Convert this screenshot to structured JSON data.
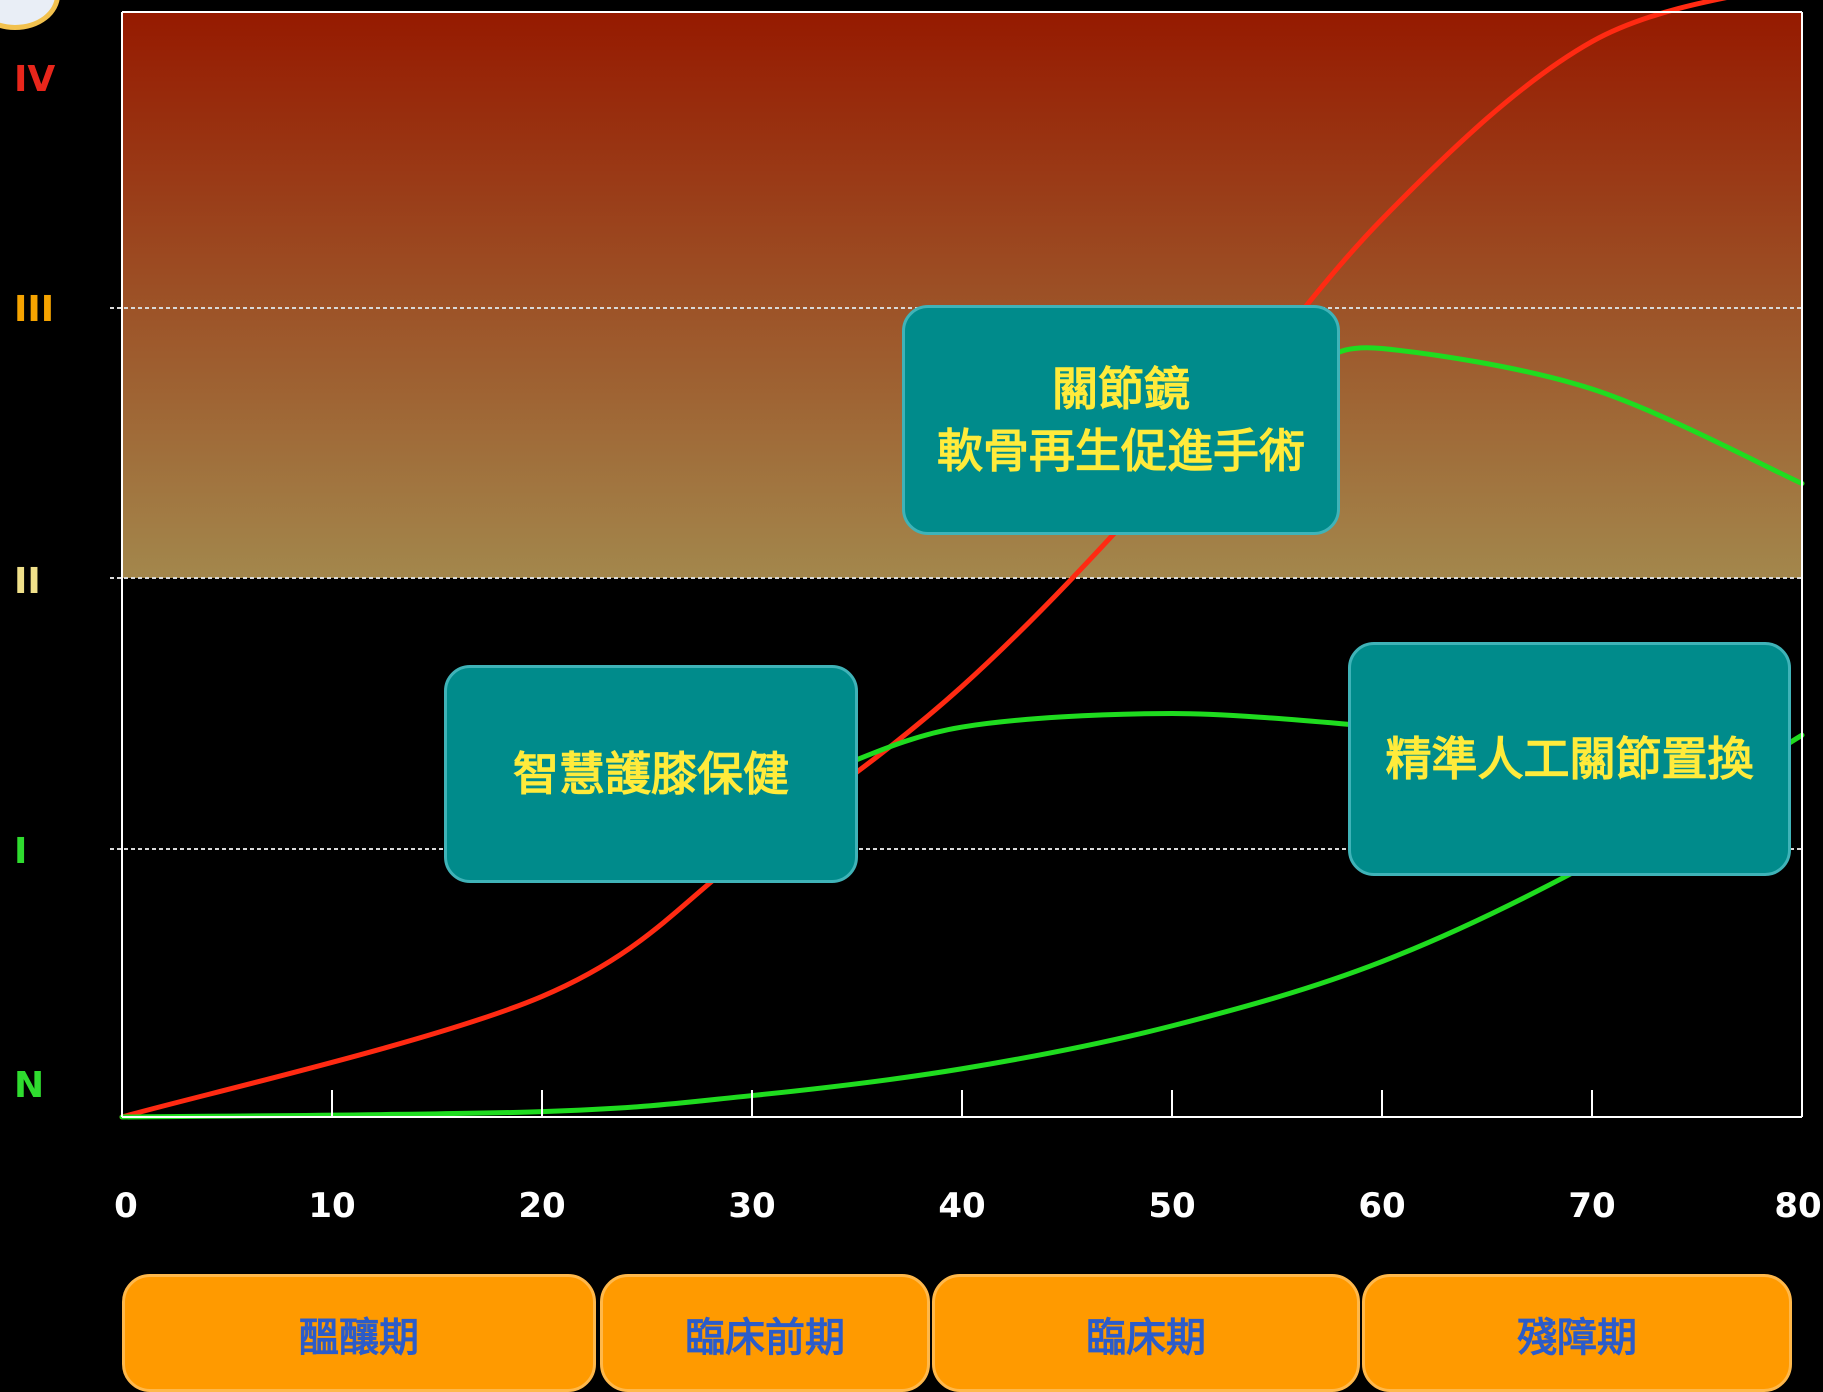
{
  "chart_data": {
    "type": "line",
    "xlim": [
      0,
      80
    ],
    "x_ticks": [
      "0",
      "10",
      "20",
      "30",
      "40",
      "50",
      "60",
      "70",
      "80"
    ],
    "y_levels": [
      {
        "label": "IV",
        "color": "#e8261b"
      },
      {
        "label": "III",
        "color": "#f5a300"
      },
      {
        "label": "II",
        "color": "#f0e08a"
      },
      {
        "label": "I",
        "color": "#2fdc2f"
      },
      {
        "label": "N",
        "color": "#2fdc2f"
      }
    ],
    "series": [
      {
        "color": "#ff2a12",
        "x": [
          0,
          20,
          30,
          40,
          50,
          60,
          70,
          80
        ],
        "y": [
          0,
          0.45,
          1.0,
          1.6,
          2.4,
          3.3,
          3.9,
          4.1
        ]
      },
      {
        "color": "#1fdc1f",
        "x": [
          0,
          20,
          30,
          40,
          50,
          60,
          70,
          80
        ],
        "y": [
          0,
          0.02,
          0.08,
          0.18,
          0.34,
          0.58,
          0.95,
          1.42
        ]
      },
      {
        "color": "#1fdc1f",
        "x": [
          34,
          40,
          50,
          60
        ],
        "y": [
          1.3,
          1.45,
          1.5,
          1.45
        ]
      },
      {
        "color": "#1fdc1f",
        "x": [
          57,
          60,
          70,
          80
        ],
        "y": [
          2.8,
          2.85,
          2.7,
          2.35
        ]
      }
    ],
    "band_color_top": "#961a00",
    "band_color_bottom": "#a3874c"
  },
  "callouts": {
    "arthroscopy_line1": "關節鏡",
    "arthroscopy_line2": "軟骨再生促進手術",
    "knee_care": "智慧護膝保健",
    "replacement": "精準人工關節置換"
  },
  "stages": [
    "醞釀期",
    "臨床前期",
    "臨床期",
    "殘障期"
  ],
  "colors": {
    "callout_bg": "#008b8b",
    "callout_text": "#ffeb3b",
    "stage_bg": "#ff9a00",
    "stage_text": "#2c5cc9"
  }
}
